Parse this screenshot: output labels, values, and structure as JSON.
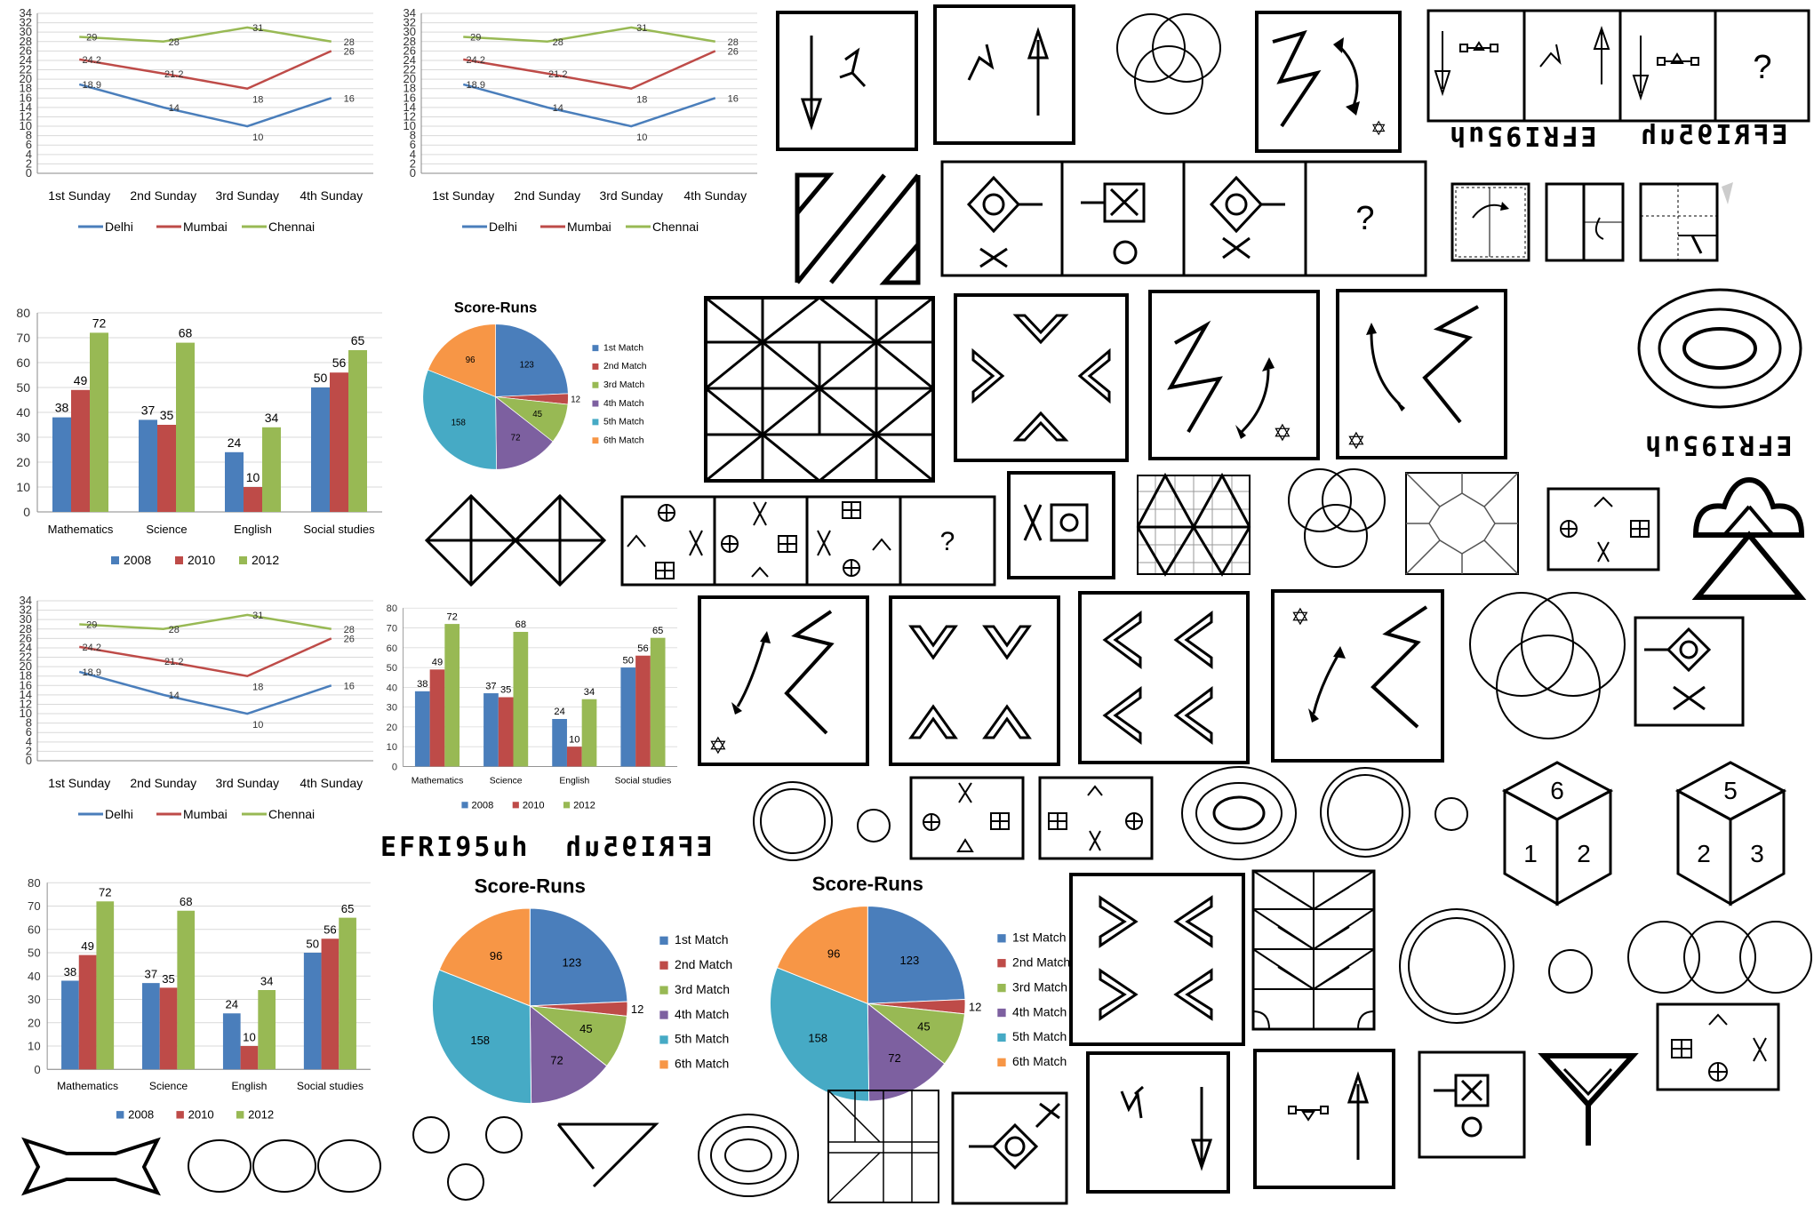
{
  "line_chart": {
    "categories": [
      "1st Sunday",
      "2nd Sunday",
      "3rd Sunday",
      "4th Sunday"
    ],
    "yticks": [
      0,
      2,
      4,
      6,
      8,
      10,
      12,
      14,
      16,
      18,
      20,
      22,
      24,
      26,
      28,
      30,
      32,
      34
    ],
    "series": [
      {
        "name": "Delhi",
        "color": "#4a7ebb",
        "values": [
          18.9,
          14,
          10,
          16
        ],
        "labels": [
          "18.9",
          "14",
          "10",
          "16"
        ]
      },
      {
        "name": "Mumbai",
        "color": "#be4b48",
        "values": [
          24.2,
          21.2,
          18,
          26
        ],
        "labels": [
          "24.2",
          "21.2",
          "18",
          "26"
        ]
      },
      {
        "name": "Chennai",
        "color": "#98b954",
        "values": [
          29,
          28,
          31,
          28
        ],
        "labels": [
          "29",
          "28",
          "31",
          "28"
        ]
      }
    ]
  },
  "bar_chart": {
    "categories": [
      "Mathematics",
      "Science",
      "English",
      "Social studies"
    ],
    "yticks": [
      0,
      10,
      20,
      30,
      40,
      50,
      60,
      70,
      80
    ],
    "series": [
      {
        "name": "2008",
        "color": "#4a7ebb",
        "values": [
          38,
          37,
          24,
          50
        ]
      },
      {
        "name": "2010",
        "color": "#be4b48",
        "values": [
          49,
          35,
          10,
          56
        ]
      },
      {
        "name": "2012",
        "color": "#98b954",
        "values": [
          72,
          68,
          34,
          65
        ]
      }
    ]
  },
  "pie_chart": {
    "title": "Score-Runs",
    "slices": [
      {
        "name": "1st Match",
        "value": 123,
        "color": "#4a7ebb"
      },
      {
        "name": "2nd Match",
        "value": 12,
        "color": "#be4b48"
      },
      {
        "name": "3rd Match",
        "value": 45,
        "color": "#98b954"
      },
      {
        "name": "4th Match",
        "value": 72,
        "color": "#7d60a0"
      },
      {
        "name": "5th Match",
        "value": 158,
        "color": "#46aac5"
      },
      {
        "name": "6th Match",
        "value": 96,
        "color": "#f79646"
      }
    ]
  },
  "chart_data": [
    {
      "type": "line",
      "title": "",
      "categories": [
        "1st Sunday",
        "2nd Sunday",
        "3rd Sunday",
        "4th Sunday"
      ],
      "ylim": [
        0,
        34
      ],
      "series": [
        {
          "name": "Delhi",
          "values": [
            18.9,
            14,
            10,
            16
          ]
        },
        {
          "name": "Mumbai",
          "values": [
            24.2,
            21.2,
            18,
            26
          ]
        },
        {
          "name": "Chennai",
          "values": [
            29,
            28,
            31,
            28
          ]
        }
      ],
      "legend": "bottom"
    },
    {
      "type": "bar",
      "title": "",
      "categories": [
        "Mathematics",
        "Science",
        "English",
        "Social studies"
      ],
      "ylim": [
        0,
        80
      ],
      "series": [
        {
          "name": "2008",
          "values": [
            38,
            37,
            24,
            50
          ]
        },
        {
          "name": "2010",
          "values": [
            49,
            35,
            10,
            56
          ]
        },
        {
          "name": "2012",
          "values": [
            72,
            68,
            34,
            65
          ]
        }
      ],
      "legend": "bottom"
    },
    {
      "type": "pie",
      "title": "Score-Runs",
      "categories": [
        "1st Match",
        "2nd Match",
        "3rd Match",
        "4th Match",
        "5th Match",
        "6th Match"
      ],
      "values": [
        123,
        12,
        45,
        72,
        158,
        96
      ],
      "legend": "right"
    }
  ],
  "question_mark": "?",
  "text_efri": "EFRI95uh",
  "text_digits": {
    "cube1_top": "6",
    "cube1_left": "1",
    "cube1_right": "2",
    "cube2_top": "5",
    "cube2_left": "2",
    "cube2_right": "3"
  }
}
